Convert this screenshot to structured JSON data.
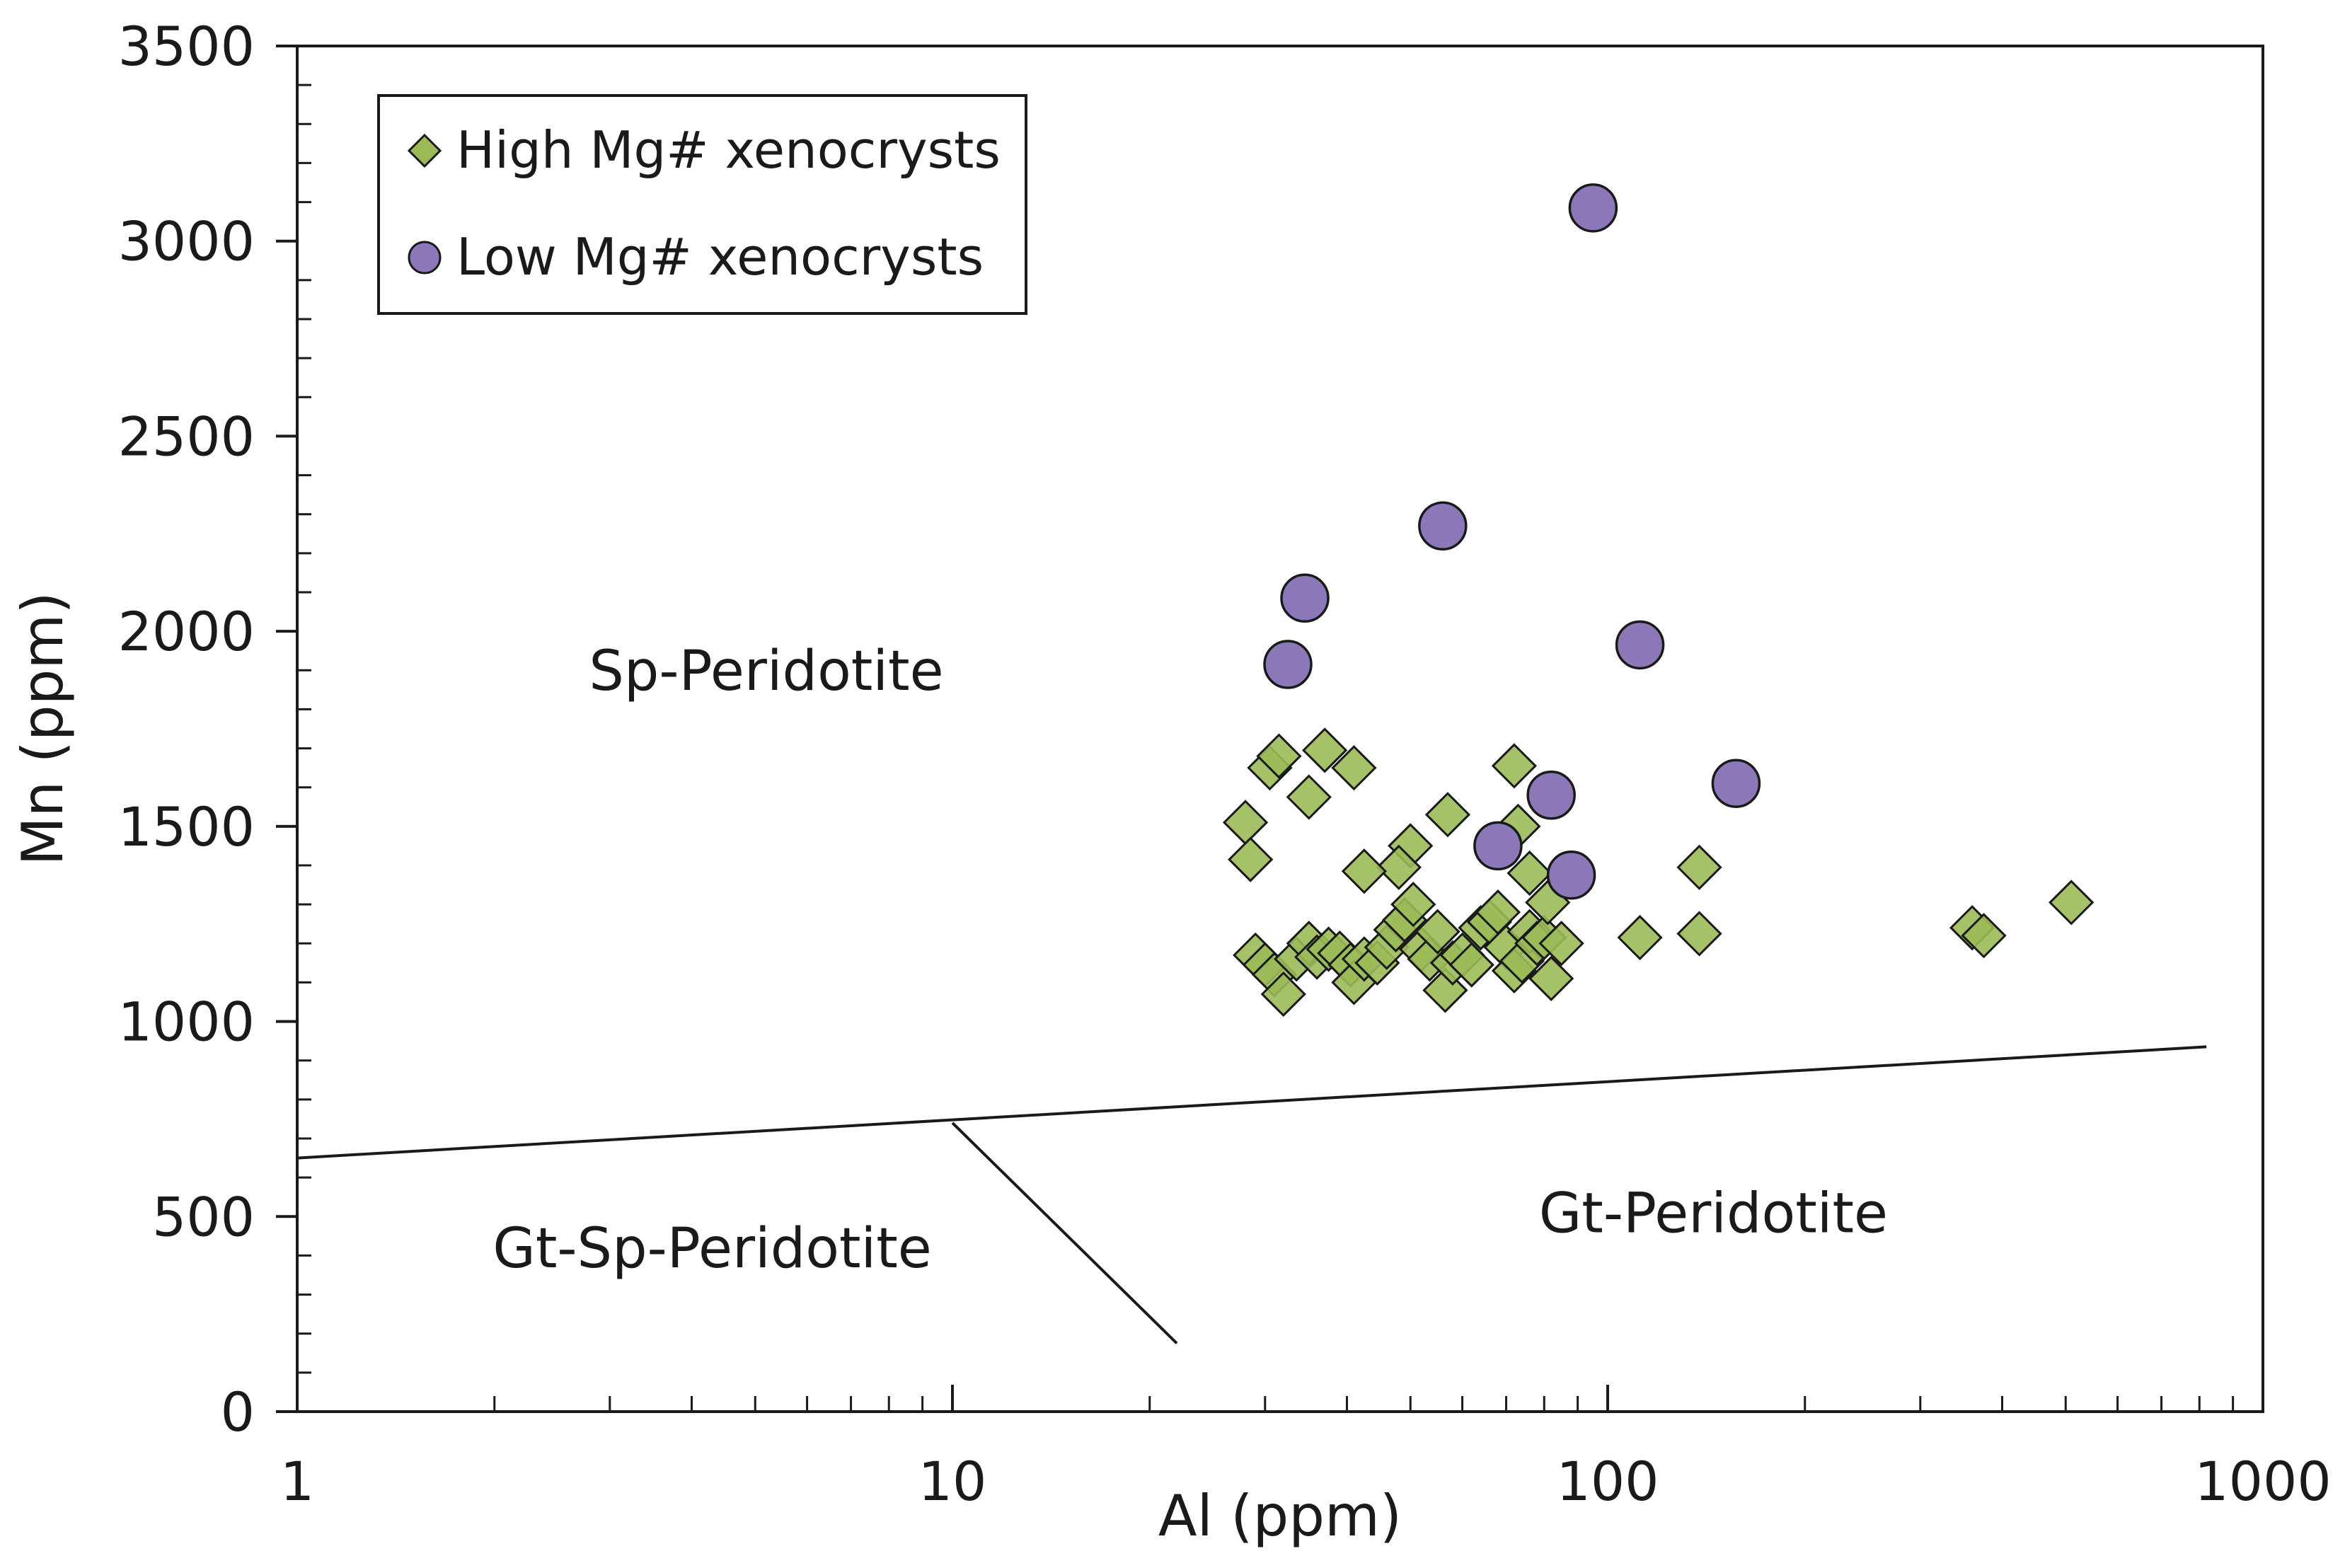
{
  "chart_data": {
    "type": "scatter",
    "xlabel": "Al (ppm)",
    "ylabel": "Mn (ppm)",
    "xscale": "log",
    "xlim": [
      1,
      1000
    ],
    "ylim": [
      0,
      3500
    ],
    "x_ticks": [
      1,
      10,
      100,
      1000
    ],
    "x_tick_labels": [
      "1",
      "10",
      "100",
      "1000"
    ],
    "y_ticks": [
      0,
      500,
      1000,
      1500,
      2000,
      2500,
      3000,
      3500
    ],
    "y_tick_labels": [
      "0",
      "500",
      "1000",
      "1500",
      "2000",
      "2500",
      "3000",
      "3500"
    ],
    "grid": false,
    "legend_position": "top-left",
    "series": [
      {
        "name": "High Mg# xenocrysts",
        "marker": "diamond",
        "color": "#9bbb59",
        "edge_color": "#1a1a1a",
        "points": [
          [
            28,
            1510
          ],
          [
            28.5,
            1415
          ],
          [
            30.5,
            1650
          ],
          [
            31.5,
            1680
          ],
          [
            37,
            1695
          ],
          [
            35,
            1575
          ],
          [
            41,
            1650
          ],
          [
            29,
            1170
          ],
          [
            30,
            1145
          ],
          [
            31,
            1120
          ],
          [
            32,
            1070
          ],
          [
            33.5,
            1160
          ],
          [
            35,
            1200
          ],
          [
            36,
            1165
          ],
          [
            37.5,
            1185
          ],
          [
            39,
            1175
          ],
          [
            40.5,
            1145
          ],
          [
            41,
            1100
          ],
          [
            42.5,
            1160
          ],
          [
            44.5,
            1150
          ],
          [
            46,
            1190
          ],
          [
            47.5,
            1235
          ],
          [
            49,
            1260
          ],
          [
            50.5,
            1300
          ],
          [
            52,
            1185
          ],
          [
            53.5,
            1160
          ],
          [
            55,
            1230
          ],
          [
            56.5,
            1080
          ],
          [
            58,
            1150
          ],
          [
            60,
            1170
          ],
          [
            62,
            1145
          ],
          [
            64,
            1240
          ],
          [
            66,
            1255
          ],
          [
            68,
            1280
          ],
          [
            70,
            1190
          ],
          [
            72,
            1130
          ],
          [
            74,
            1155
          ],
          [
            76,
            1230
          ],
          [
            78,
            1200
          ],
          [
            80,
            1215
          ],
          [
            82,
            1110
          ],
          [
            85,
            1200
          ],
          [
            81,
            1305
          ],
          [
            76,
            1380
          ],
          [
            73,
            1500
          ],
          [
            72,
            1655
          ],
          [
            57,
            1530
          ],
          [
            50,
            1450
          ],
          [
            48,
            1395
          ],
          [
            42.5,
            1385
          ],
          [
            112,
            1215
          ],
          [
            138,
            1225
          ],
          [
            138,
            1395
          ],
          [
            360,
            1240
          ],
          [
            375,
            1220
          ],
          [
            510,
            1305
          ]
        ]
      },
      {
        "name": "Low Mg# xenocrysts",
        "marker": "circle",
        "color": "#8c78b8",
        "edge_color": "#1a1a1a",
        "points": [
          [
            32.5,
            1915
          ],
          [
            34.5,
            2085
          ],
          [
            56,
            2270
          ],
          [
            95,
            3085
          ],
          [
            112,
            1965
          ],
          [
            82,
            1580
          ],
          [
            157,
            1610
          ],
          [
            68,
            1450
          ],
          [
            88,
            1375
          ]
        ]
      }
    ],
    "boundaries": [
      {
        "name": "Sp-Gt boundary",
        "points": [
          [
            1,
            650
          ],
          [
            820,
            935
          ]
        ]
      },
      {
        "name": "Gt-Sp / Gt divider",
        "points": [
          [
            10,
            740
          ],
          [
            22,
            175
          ]
        ]
      }
    ],
    "region_labels": [
      {
        "text": "Sp-Peridotite",
        "x": 5.2,
        "y": 1850
      },
      {
        "text": "Gt-Sp-Peridotite",
        "x": 4.3,
        "y": 370
      },
      {
        "text": "Gt-Peridotite",
        "x": 145,
        "y": 460
      }
    ]
  }
}
